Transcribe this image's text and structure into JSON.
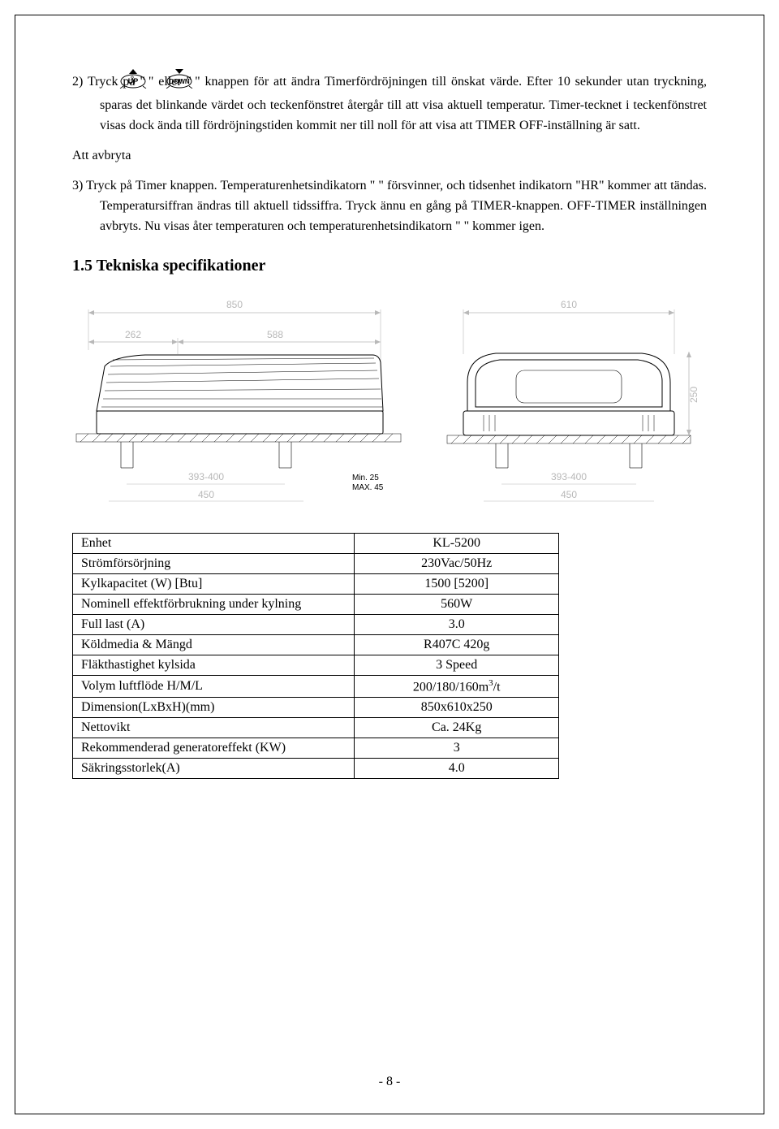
{
  "step2": {
    "prefix": "2)   Tryck på   \"",
    "mid1": "\"   eller   \"",
    "mid2": "\"   knappen för att ändra Timerfördröjningen till önskat värde. Efter 10 sekunder utan tryckning, sparas det blinkande värdet och teckenfönstret återgår till att visa aktuell temperatur. Timer-tecknet i teckenfönstret visas dock ända till fördröjningstiden kommit ner till noll för att visa att TIMER OFF-inställning är satt."
  },
  "cancel_heading": "Att avbryta",
  "step3": "3)   Tryck på Timer knappen. Temperaturenhetsindikatorn \"   \" försvinner, och tidsenhet indikatorn \"HR\" kommer att tändas. Temperatursiffran ändras till aktuell tidssiffra. Tryck ännu en gång på TIMER-knappen. OFF-TIMER inställningen avbryts. Nu visas åter temperaturen och temperaturenhetsindikatorn \"   \" kommer igen.",
  "section_title": "1.5 Tekniska specifikationer",
  "diagram": {
    "top_width": "850",
    "left_262": "262",
    "left_588": "588",
    "b_393": "393-400",
    "b_450": "450",
    "right_610": "610",
    "right_250": "250",
    "min": "Min. 25",
    "max": "MAX. 45"
  },
  "table": {
    "rows": [
      {
        "k": "Enhet",
        "v": "KL-5200"
      },
      {
        "k": "Strömförsörjning",
        "v": "230Vac/50Hz"
      },
      {
        "k": "Kylkapacitet (W) [Btu]",
        "v": "1500 [5200]"
      },
      {
        "k": "Nominell effektförbrukning under kylning",
        "v": "560W"
      },
      {
        "k": "Full last (A)",
        "v": "3.0"
      },
      {
        "k": "Köldmedia & Mängd",
        "v": "R407C   420g"
      },
      {
        "k": "Fläkthastighet kylsida",
        "v": "3 Speed"
      },
      {
        "k": "Volym luftflöde        H/M/L",
        "v": "200/180/160m³/t"
      },
      {
        "k": "Dimension(LxBxH)(mm)",
        "v": "850x610x250"
      },
      {
        "k": "Nettovikt",
        "v": "Ca. 24Kg"
      },
      {
        "k": "Rekommenderad generatoreffekt (KW)",
        "v": "3"
      },
      {
        "k": "Säkringsstorlek(A)",
        "v": "4.0"
      }
    ]
  },
  "page_number": "- 8 -"
}
